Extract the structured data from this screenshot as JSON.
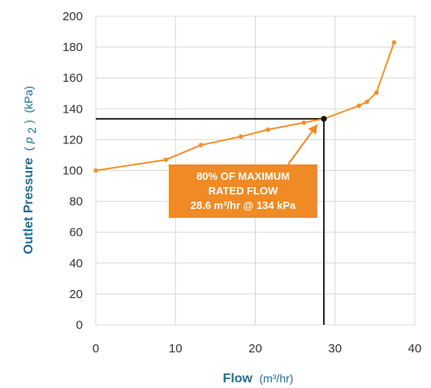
{
  "chart_data": {
    "type": "line",
    "x": [
      0,
      8.8,
      13.2,
      18.2,
      21.6,
      26.1,
      28.6,
      33.0,
      34.0,
      35.2,
      37.4
    ],
    "series": [
      {
        "values": [
          100,
          107,
          116.5,
          122,
          126.5,
          131,
          133.5,
          142,
          144.5,
          150.5,
          183
        ]
      }
    ],
    "xlim": [
      0,
      40
    ],
    "ylim": [
      0,
      200
    ],
    "x_ticks": [
      "0",
      "10",
      "20",
      "30",
      "40"
    ],
    "y_ticks": [
      "0",
      "20",
      "40",
      "60",
      "80",
      "100",
      "120",
      "140",
      "160",
      "180",
      "200"
    ],
    "xlabel": {
      "name": "Flow",
      "unit": "(m³/hr)"
    },
    "ylabel": {
      "name": "Outlet Pressure",
      "open": "(",
      "var": "p",
      "sub": "2",
      "close": ")",
      "unit": "(kPa)"
    },
    "grid": true,
    "highlight_point": {
      "x": 28.6,
      "y": 133.5
    },
    "annotation": {
      "lines": [
        "80% OF MAXIMUM",
        "RATED FLOW",
        "28.6 m³/hr @ 134 kPa"
      ]
    },
    "colors": {
      "series": "#f39129",
      "annotation_bg": "#f08a24",
      "annotation_text": "#ffffff",
      "axis_title": "#1f6e96",
      "grid": "#d8d8d8",
      "reference_lines": "#111111"
    }
  }
}
